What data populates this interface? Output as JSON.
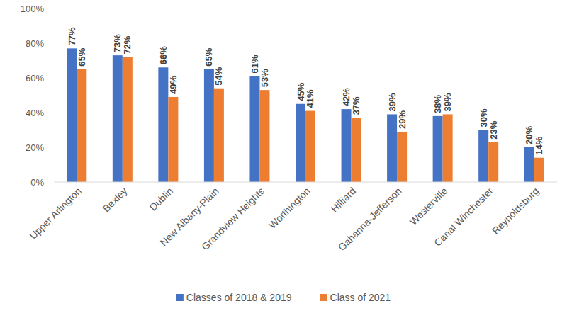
{
  "chart_data": {
    "type": "bar",
    "categories": [
      "Upper Arlington",
      "Bexley",
      "Dublin",
      "New Albany-Plain",
      "Grandview Heights",
      "Worthington",
      "Hilliard",
      "Gahanna-Jefferson",
      "Westerville",
      "Canal Winchester",
      "Reynoldsburg"
    ],
    "series": [
      {
        "name": "Classes of 2018 & 2019",
        "color": "#4472c4",
        "values": [
          77,
          73,
          66,
          65,
          61,
          45,
          42,
          39,
          38,
          30,
          20
        ],
        "value_labels": [
          "77%",
          "73%",
          "66%",
          "65%",
          "61%",
          "45%",
          "42%",
          "39%",
          "38%",
          "30%",
          "20%"
        ]
      },
      {
        "name": "Class of 2021",
        "color": "#ed7d31",
        "values": [
          65,
          72,
          49,
          54,
          53,
          41,
          37,
          29,
          39,
          23,
          14
        ],
        "value_labels": [
          "65%",
          "72%",
          "49%",
          "54%",
          "53%",
          "41%",
          "37%",
          "29%",
          "39%",
          "23%",
          "14%"
        ]
      }
    ],
    "ylim": [
      0,
      100
    ],
    "yticks": [
      {
        "value": 0,
        "label": "0%"
      },
      {
        "value": 20,
        "label": "20%"
      },
      {
        "value": 40,
        "label": "40%"
      },
      {
        "value": 60,
        "label": "60%"
      },
      {
        "value": 80,
        "label": "80%"
      },
      {
        "value": 100,
        "label": "100%"
      }
    ],
    "grid": false,
    "legend": "bottom",
    "data_labels": true
  }
}
